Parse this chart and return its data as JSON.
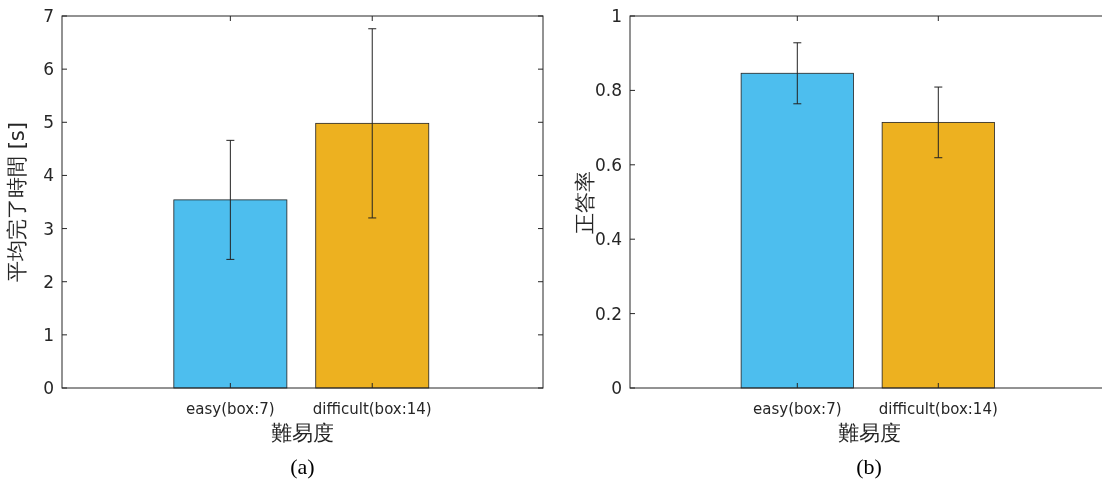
{
  "chart_data": [
    {
      "type": "bar",
      "categories": [
        "easy(box:7)",
        "difficult(box:14)"
      ],
      "values": [
        3.54,
        4.98
      ],
      "errors": [
        1.12,
        1.78
      ],
      "colors": [
        "#4dbeee",
        "#edb120"
      ],
      "ylim": [
        0,
        7
      ],
      "yticks": [
        0,
        1,
        2,
        3,
        4,
        5,
        6,
        7
      ],
      "xlabel": "難易度",
      "ylabel": "平均完了時間 [s]",
      "annotations": [
        "(a)"
      ]
    },
    {
      "type": "bar",
      "categories": [
        "easy(box:7)",
        "difficult(box:14)"
      ],
      "values": [
        0.846,
        0.714
      ],
      "errors": [
        0.082,
        0.095
      ],
      "colors": [
        "#4dbeee",
        "#edb120"
      ],
      "ylim": [
        0,
        1
      ],
      "yticks": [
        0,
        0.2,
        0.4,
        0.6,
        0.8,
        1
      ],
      "xlabel": "難易度",
      "ylabel": "正答率",
      "annotations": [
        "(b)"
      ]
    }
  ]
}
